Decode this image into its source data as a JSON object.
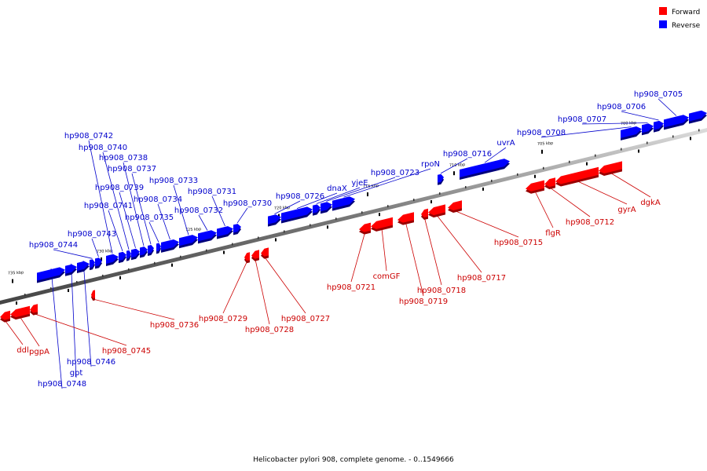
{
  "legend": [
    {
      "label": "Forward",
      "color": "#ff0000"
    },
    {
      "label": "Reverse",
      "color": "#0000ff"
    }
  ],
  "colors": {
    "forward": "#ff0000",
    "reverse": "#0000ff",
    "axis": "#888888"
  },
  "caption": "Helicobacter pylori 908, complete genome. - 0..1549666",
  "ticks": [
    {
      "label": "735 kbp",
      "kbp": 735
    },
    {
      "label": "730 kbp",
      "kbp": 730
    },
    {
      "label": "725 kbp",
      "kbp": 725
    },
    {
      "label": "720 kbp",
      "kbp": 720
    },
    {
      "label": "715 kbp",
      "kbp": 715
    },
    {
      "label": "710 kbp",
      "kbp": 710
    },
    {
      "label": "705 kbp",
      "kbp": 705
    },
    {
      "label": "700 kbp",
      "kbp": 700
    }
  ],
  "genes": [
    {
      "name": "hp908_0705",
      "strand": "reverse"
    },
    {
      "name": "hp908_0706",
      "strand": "reverse"
    },
    {
      "name": "hp908_0707",
      "strand": "reverse"
    },
    {
      "name": "hp908_0708",
      "strand": "reverse"
    },
    {
      "name": "uvrA",
      "strand": "reverse"
    },
    {
      "name": "hp908_0716",
      "strand": "reverse"
    },
    {
      "name": "rpoN",
      "strand": "reverse"
    },
    {
      "name": "hp908_0723",
      "strand": "reverse"
    },
    {
      "name": "yjeE",
      "strand": "reverse"
    },
    {
      "name": "dnaX",
      "strand": "reverse"
    },
    {
      "name": "hp908_0726",
      "strand": "reverse"
    },
    {
      "name": "hp908_0730",
      "strand": "reverse"
    },
    {
      "name": "hp908_0731",
      "strand": "reverse"
    },
    {
      "name": "hp908_0732",
      "strand": "reverse"
    },
    {
      "name": "hp908_0733",
      "strand": "reverse"
    },
    {
      "name": "hp908_0734",
      "strand": "reverse"
    },
    {
      "name": "hp908_0735",
      "strand": "reverse"
    },
    {
      "name": "hp908_0737",
      "strand": "reverse"
    },
    {
      "name": "hp908_0738",
      "strand": "reverse"
    },
    {
      "name": "hp908_0739",
      "strand": "reverse"
    },
    {
      "name": "hp908_0740",
      "strand": "reverse"
    },
    {
      "name": "hp908_0741",
      "strand": "reverse"
    },
    {
      "name": "hp908_0742",
      "strand": "reverse"
    },
    {
      "name": "hp908_0743",
      "strand": "reverse"
    },
    {
      "name": "hp908_0744",
      "strand": "reverse"
    },
    {
      "name": "hp908_0746",
      "strand": "reverse"
    },
    {
      "name": "gpt",
      "strand": "reverse"
    },
    {
      "name": "hp908_0748",
      "strand": "reverse"
    },
    {
      "name": "dgkA",
      "strand": "forward"
    },
    {
      "name": "gyrA",
      "strand": "forward"
    },
    {
      "name": "hp908_0712",
      "strand": "forward"
    },
    {
      "name": "flgR",
      "strand": "forward"
    },
    {
      "name": "hp908_0715",
      "strand": "forward"
    },
    {
      "name": "hp908_0717",
      "strand": "forward"
    },
    {
      "name": "hp908_0718",
      "strand": "forward"
    },
    {
      "name": "hp908_0719",
      "strand": "forward"
    },
    {
      "name": "comGF",
      "strand": "forward"
    },
    {
      "name": "hp908_0721",
      "strand": "forward"
    },
    {
      "name": "hp908_0727",
      "strand": "forward"
    },
    {
      "name": "hp908_0728",
      "strand": "forward"
    },
    {
      "name": "hp908_0729",
      "strand": "forward"
    },
    {
      "name": "hp908_0736",
      "strand": "forward"
    },
    {
      "name": "hp908_0745",
      "strand": "forward"
    },
    {
      "name": "pgpA",
      "strand": "forward"
    },
    {
      "name": "ddl",
      "strand": "forward"
    }
  ]
}
